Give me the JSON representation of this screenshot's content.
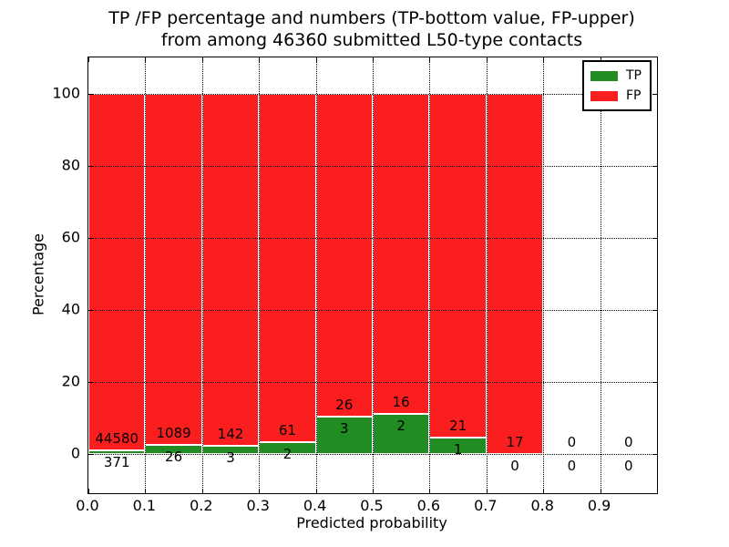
{
  "figure": {
    "title_line1": "TP /FP percentage and numbers (TP-bottom value, FP-upper)",
    "title_line2": "from among 46360 submitted L50-type contacts",
    "xlabel": "Predicted probability",
    "ylabel": "Percentage"
  },
  "legend": {
    "items": [
      {
        "label": "TP",
        "color": "#218c21"
      },
      {
        "label": "FP",
        "color": "#fb1e1e"
      }
    ]
  },
  "chart_data": {
    "type": "bar",
    "stacked": true,
    "normalized_to": 100,
    "title": "TP /FP percentage and numbers (TP-bottom value, FP-upper) from among 46360 submitted L50-type contacts",
    "xlabel": "Predicted probability",
    "ylabel": "Percentage",
    "legend_position": "upper right",
    "grid": "dotted black, drawn above bars",
    "colors": {
      "tp": "#218c21",
      "fp": "#fb1e1e",
      "bar_edge": "#ffffff"
    },
    "xlim": [
      0.0,
      1.0
    ],
    "ylim": [
      -11,
      110
    ],
    "x_ticks": [
      "0.0",
      "0.1",
      "0.2",
      "0.3",
      "0.4",
      "0.5",
      "0.6",
      "0.7",
      "0.8",
      "0.9"
    ],
    "y_ticks": [
      0,
      20,
      40,
      60,
      80,
      100
    ],
    "total_contacts": 46360,
    "bins": [
      {
        "range": [
          0.0,
          0.1
        ],
        "tp_count": 371,
        "fp_count": 44580,
        "tp_pct": 0.83,
        "fp_pct": 99.17
      },
      {
        "range": [
          0.1,
          0.2
        ],
        "tp_count": 26,
        "fp_count": 1089,
        "tp_pct": 2.33,
        "fp_pct": 97.67
      },
      {
        "range": [
          0.2,
          0.3
        ],
        "tp_count": 3,
        "fp_count": 142,
        "tp_pct": 2.07,
        "fp_pct": 97.93
      },
      {
        "range": [
          0.3,
          0.4
        ],
        "tp_count": 2,
        "fp_count": 61,
        "tp_pct": 3.17,
        "fp_pct": 96.83
      },
      {
        "range": [
          0.4,
          0.5
        ],
        "tp_count": 3,
        "fp_count": 26,
        "tp_pct": 10.34,
        "fp_pct": 89.66
      },
      {
        "range": [
          0.5,
          0.6
        ],
        "tp_count": 2,
        "fp_count": 16,
        "tp_pct": 11.11,
        "fp_pct": 88.89
      },
      {
        "range": [
          0.6,
          0.7
        ],
        "tp_count": 1,
        "fp_count": 21,
        "tp_pct": 4.55,
        "fp_pct": 95.45
      },
      {
        "range": [
          0.7,
          0.8
        ],
        "tp_count": 0,
        "fp_count": 17,
        "tp_pct": 0.0,
        "fp_pct": 100.0
      },
      {
        "range": [
          0.8,
          0.9
        ],
        "tp_count": 0,
        "fp_count": 0,
        "tp_pct": 0.0,
        "fp_pct": 0.0
      },
      {
        "range": [
          0.9,
          1.0
        ],
        "tp_count": 0,
        "fp_count": 0,
        "tp_pct": 0.0,
        "fp_pct": 0.0
      }
    ]
  }
}
